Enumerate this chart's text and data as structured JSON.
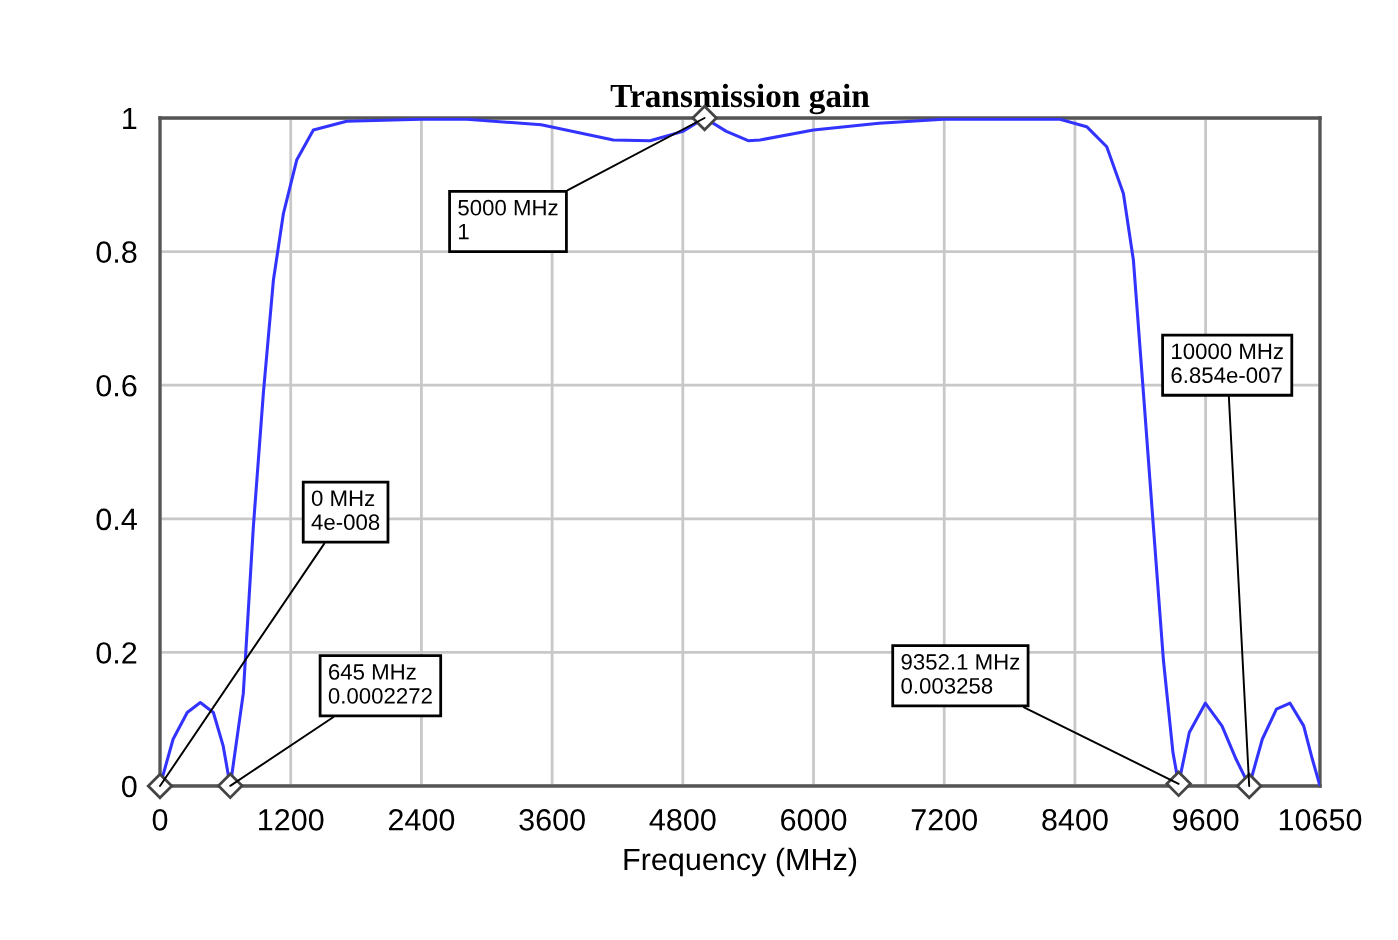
{
  "chart_data": {
    "type": "line",
    "title": "Transmission gain",
    "xlabel": "Frequency (MHz)",
    "x": [
      0,
      120,
      250,
      370,
      490,
      580,
      645,
      765,
      857,
      949,
      1041,
      1133,
      1255,
      1408,
      1714,
      2400,
      2816,
      3500,
      4162,
      4500,
      4800,
      5000,
      5200,
      5400,
      5509,
      6000,
      6600,
      7192,
      7800,
      8263,
      8508,
      8692,
      8845,
      8937,
      9029,
      9120,
      9212,
      9300,
      9352.1,
      9450,
      9597,
      9750,
      9880,
      10000,
      10120,
      10250,
      10375,
      10500,
      10580,
      10650
    ],
    "series": [
      {
        "color": "#3333ff",
        "values": [
          0,
          0.07,
          0.11,
          0.125,
          0.11,
          0.06,
          0,
          0.139,
          0.388,
          0.588,
          0.757,
          0.857,
          0.937,
          0.982,
          0.995,
          0.998,
          0.998,
          0.99,
          0.967,
          0.966,
          0.98,
          1,
          0.98,
          0.966,
          0.967,
          0.982,
          0.992,
          0.998,
          0.998,
          0.998,
          0.987,
          0.957,
          0.887,
          0.787,
          0.588,
          0.389,
          0.189,
          0.05,
          0.003,
          0.08,
          0.124,
          0.09,
          0.04,
          0,
          0.07,
          0.115,
          0.124,
          0.09,
          0.04,
          0
        ]
      }
    ],
    "xlim": [
      0,
      10650
    ],
    "ylim": [
      0,
      1
    ],
    "xticks": [
      0,
      1200,
      2400,
      3600,
      4800,
      6000,
      7200,
      8400,
      9600,
      10650
    ],
    "yticks": [
      0,
      0.2,
      0.4,
      0.6,
      0.8,
      1
    ],
    "grid": true,
    "legend": false,
    "line_style": "solid",
    "marker": "none",
    "annotations": [
      {
        "text": "0 MHz\n4e-008",
        "x": 0,
        "y": 4e-08
      },
      {
        "text": "645 MHz\n0.0002272",
        "x": 645,
        "y": 0.0002272
      },
      {
        "text": "5000 MHz\n1",
        "x": 5000,
        "y": 1
      },
      {
        "text": "9352.1 MHz\n0.003258",
        "x": 9352.1,
        "y": 0.003258
      },
      {
        "text": "10000 MHz\n6.854e-007",
        "x": 10000,
        "y": 6.854e-07
      }
    ]
  }
}
